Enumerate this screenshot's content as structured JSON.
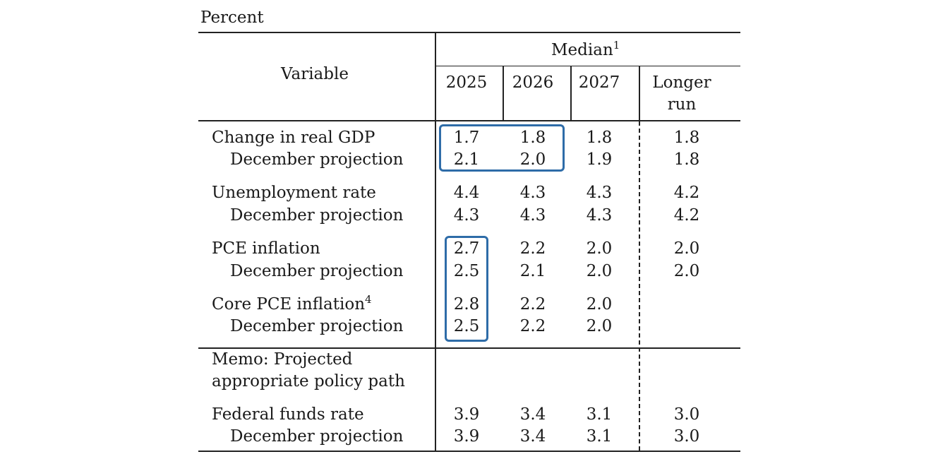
{
  "unit_label": "Percent",
  "header": {
    "variable": "Variable",
    "median": "Median",
    "median_note": "1",
    "cols": [
      "2025",
      "2026",
      "2027"
    ],
    "longer_run_1": "Longer",
    "longer_run_2": "run"
  },
  "rows": [
    {
      "label": "Change in real GDP",
      "values": [
        "1.7",
        "1.8",
        "1.8",
        "1.8"
      ]
    },
    {
      "label": "December projection",
      "values": [
        "2.1",
        "2.0",
        "1.9",
        "1.8"
      ]
    },
    {
      "label": "Unemployment rate",
      "values": [
        "4.4",
        "4.3",
        "4.3",
        "4.2"
      ]
    },
    {
      "label": "December projection",
      "values": [
        "4.3",
        "4.3",
        "4.3",
        "4.2"
      ]
    },
    {
      "label": "PCE inflation",
      "values": [
        "2.7",
        "2.2",
        "2.0",
        "2.0"
      ]
    },
    {
      "label": "December projection",
      "values": [
        "2.5",
        "2.1",
        "2.0",
        "2.0"
      ]
    },
    {
      "label": "Core PCE inflation",
      "note": "4",
      "values": [
        "2.8",
        "2.2",
        "2.0",
        ""
      ]
    },
    {
      "label": "December projection",
      "values": [
        "2.5",
        "2.2",
        "2.0",
        ""
      ]
    }
  ],
  "memo": {
    "line1": "Memo: Projected",
    "line2": "appropriate policy path"
  },
  "ffr_rows": [
    {
      "label": "Federal funds rate",
      "values": [
        "3.9",
        "3.4",
        "3.1",
        "3.0"
      ]
    },
    {
      "label": "December projection",
      "values": [
        "3.9",
        "3.4",
        "3.1",
        "3.0"
      ]
    }
  ],
  "highlight_color": "#2e6ca8"
}
